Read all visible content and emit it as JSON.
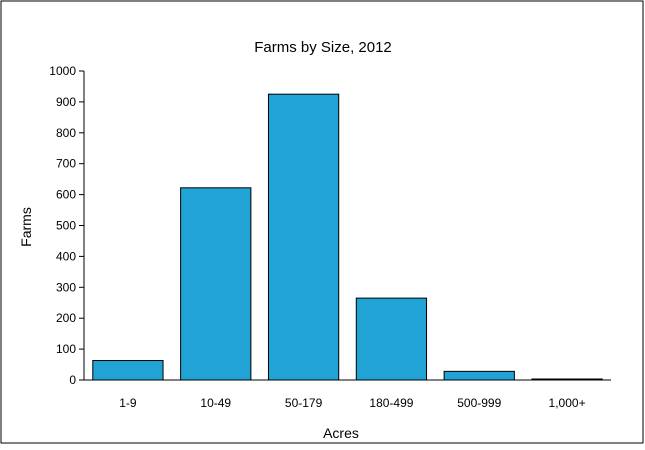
{
  "chart_data": {
    "type": "bar",
    "title": "Farms by Size, 2012",
    "xlabel": "Acres",
    "ylabel": "Farms",
    "categories": [
      "1-9",
      "10-49",
      "50-179",
      "180-499",
      "500-999",
      "1,000+"
    ],
    "values": [
      63,
      622,
      925,
      265,
      28,
      3
    ],
    "ylim": [
      0,
      1000
    ],
    "yticks": [
      0,
      100,
      200,
      300,
      400,
      500,
      600,
      700,
      800,
      900,
      1000
    ],
    "grid": false,
    "legend": "none",
    "colors": {
      "bar_fill": "#21A3D6",
      "bar_stroke": "#000000",
      "axis": "#000000",
      "frame": "#000000",
      "background": "#ffffff"
    }
  }
}
